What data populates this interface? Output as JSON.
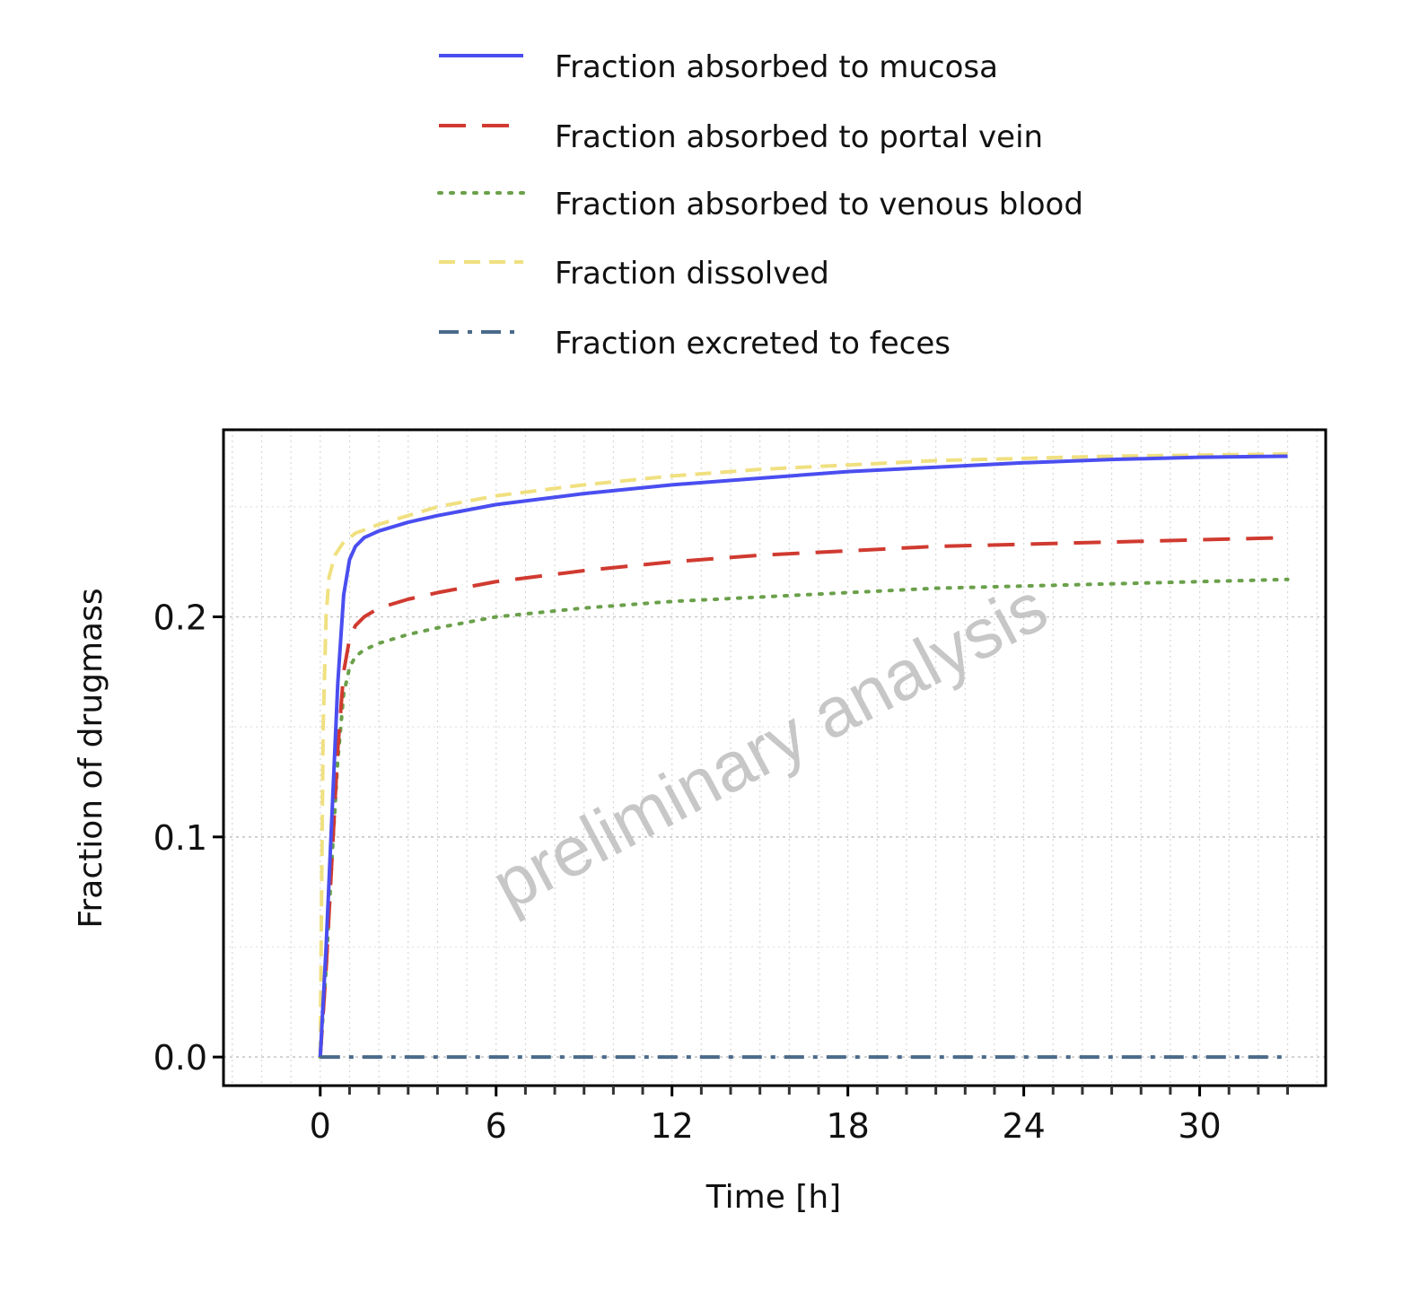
{
  "chart_data": {
    "type": "line",
    "title": "",
    "xlabel": "Time [h]",
    "ylabel": "Fraction of drugmass",
    "xlim": [
      -3.3,
      34.3
    ],
    "ylim": [
      -0.013,
      0.285
    ],
    "x_ticks": [
      0,
      6,
      12,
      18,
      24,
      30
    ],
    "x_tick_labels": [
      "0",
      "6",
      "12",
      "18",
      "24",
      "30"
    ],
    "y_ticks": [
      0.0,
      0.1,
      0.2
    ],
    "y_tick_labels": [
      "0.0",
      "0.1",
      "0.2"
    ],
    "grid": true,
    "legend_position": "top",
    "watermark": "preliminary analysis",
    "series": [
      {
        "name": "Fraction absorbed to mucosa",
        "color": "#4a4ef0",
        "dash": "solid",
        "x": [
          0,
          0.2,
          0.4,
          0.6,
          0.8,
          1.0,
          1.2,
          1.5,
          2,
          3,
          4,
          6,
          9,
          12,
          15,
          18,
          21,
          24,
          27,
          30,
          33
        ],
        "y": [
          0,
          0.05,
          0.11,
          0.17,
          0.21,
          0.226,
          0.232,
          0.236,
          0.239,
          0.243,
          0.246,
          0.251,
          0.256,
          0.26,
          0.263,
          0.266,
          0.268,
          0.27,
          0.2715,
          0.2725,
          0.273
        ]
      },
      {
        "name": "Fraction absorbed to portal vein",
        "color": "#d03a30",
        "dash": "long-dash",
        "x": [
          0,
          0.2,
          0.4,
          0.6,
          0.8,
          1.0,
          1.2,
          1.5,
          2,
          3,
          4,
          6,
          9,
          12,
          15,
          18,
          21,
          24,
          27,
          30,
          33
        ],
        "y": [
          0,
          0.04,
          0.09,
          0.14,
          0.175,
          0.19,
          0.196,
          0.2,
          0.204,
          0.208,
          0.211,
          0.216,
          0.221,
          0.225,
          0.228,
          0.23,
          0.232,
          0.233,
          0.234,
          0.235,
          0.236
        ]
      },
      {
        "name": "Fraction absorbed to venous blood",
        "color": "#6aa04a",
        "dash": "dotted",
        "x": [
          0,
          0.2,
          0.4,
          0.6,
          0.8,
          1.0,
          1.2,
          1.5,
          2,
          3,
          4,
          6,
          9,
          12,
          15,
          18,
          21,
          24,
          27,
          30,
          33
        ],
        "y": [
          0,
          0.04,
          0.09,
          0.135,
          0.165,
          0.177,
          0.182,
          0.185,
          0.188,
          0.192,
          0.195,
          0.2,
          0.204,
          0.207,
          0.209,
          0.211,
          0.213,
          0.214,
          0.215,
          0.216,
          0.217
        ]
      },
      {
        "name": "Fraction dissolved",
        "color": "#f0e080",
        "dash": "dashed",
        "x": [
          0,
          0.05,
          0.1,
          0.2,
          0.3,
          0.5,
          0.8,
          1.2,
          2,
          3,
          4,
          6,
          9,
          12,
          15,
          18,
          21,
          24,
          27,
          30,
          33
        ],
        "y": [
          0,
          0.08,
          0.15,
          0.2,
          0.218,
          0.228,
          0.234,
          0.238,
          0.242,
          0.246,
          0.25,
          0.255,
          0.26,
          0.264,
          0.267,
          0.269,
          0.271,
          0.272,
          0.273,
          0.2735,
          0.274
        ]
      },
      {
        "name": "Fraction excreted to feces",
        "color": "#4a6a8a",
        "dash": "dash-dot",
        "x": [
          0,
          6,
          12,
          18,
          24,
          30,
          33
        ],
        "y": [
          0,
          0,
          0,
          0,
          0,
          0,
          0
        ]
      }
    ]
  }
}
